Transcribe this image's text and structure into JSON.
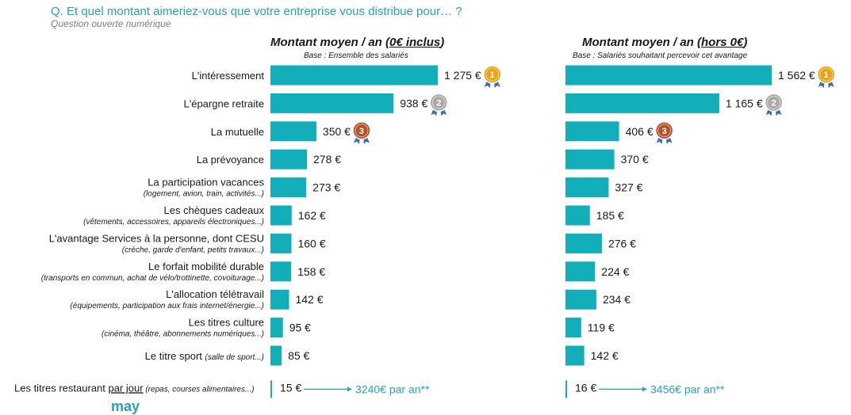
{
  "header": {
    "question": "Q. Et quel montant aimeriez-vous que votre entreprise vous distribue pour… ?",
    "subtitle": "Question ouverte numérique"
  },
  "colors": {
    "bar": "#12aeba",
    "accent": "#27a3b6",
    "gold": "#e8a317",
    "silver": "#a9a9a9",
    "bronze": "#b3532c"
  },
  "chart_data": {
    "type": "bar",
    "orientation": "horizontal",
    "currency": "€",
    "categories": [
      {
        "label": "L'intéressement",
        "sub": ""
      },
      {
        "label": "L'épargne retraite",
        "sub": ""
      },
      {
        "label": "La mutuelle",
        "sub": ""
      },
      {
        "label": "La prévoyance",
        "sub": ""
      },
      {
        "label": "La participation vacances",
        "sub": "(logement, avion, train, activités...)"
      },
      {
        "label": "Les chèques cadeaux",
        "sub": "(vêtements, accessoires, appareils électroniques...)"
      },
      {
        "label": "L'avantage Services à la personne, dont CESU",
        "sub": "(crèche, garde d'enfant, petits travaux...)"
      },
      {
        "label": "Le forfait mobilité durable",
        "sub": "(transports en commun, achat de vélo/trottinette, covoiturage...)"
      },
      {
        "label": "L'allocation télétravail",
        "sub": "(équipements, participation aux frais internet/énergie...)"
      },
      {
        "label": "Les titres culture",
        "sub": "(cinéma, théâtre, abonnements numériques...)"
      },
      {
        "label": "Le titre sport",
        "inline_sub": "(salle de sport...)"
      }
    ],
    "last_row": {
      "label_start": "Les titres restaurant ",
      "label_emph": "par jour",
      "label_end": " (repas, courses alimentaires...)"
    },
    "series": [
      {
        "title_prefix": "Montant moyen / an (",
        "title_emph": "0€ inclus",
        "title_suffix": ")",
        "base": "Base : Ensemble des salariés",
        "values": [
          1275,
          938,
          350,
          278,
          273,
          162,
          160,
          158,
          142,
          95,
          85
        ],
        "value_labels": [
          "1 275 €",
          "938 €",
          "350 €",
          "278 €",
          "273 €",
          "162 €",
          "160 €",
          "158 €",
          "142 €",
          "95 €",
          "85 €"
        ],
        "daily_label": "15 €",
        "annual_label": "3240€ par an**"
      },
      {
        "title_prefix": "Montant moyen / an (",
        "title_emph": "hors 0€",
        "title_suffix": ")",
        "base": "Base : Salariés souhaitant percevoir cet avantage",
        "values": [
          1562,
          1165,
          406,
          370,
          327,
          185,
          276,
          224,
          234,
          119,
          142
        ],
        "value_labels": [
          "1 562 €",
          "1 165 €",
          "406 €",
          "370 €",
          "327 €",
          "185 €",
          "276 €",
          "224 €",
          "234 €",
          "119 €",
          "142 €"
        ],
        "daily_label": "16 €",
        "annual_label": "3456€ par an**"
      }
    ],
    "medals": [
      {
        "rank": "1",
        "color": "gold"
      },
      {
        "rank": "2",
        "color": "silver"
      },
      {
        "rank": "3",
        "color": "bronze"
      }
    ]
  }
}
